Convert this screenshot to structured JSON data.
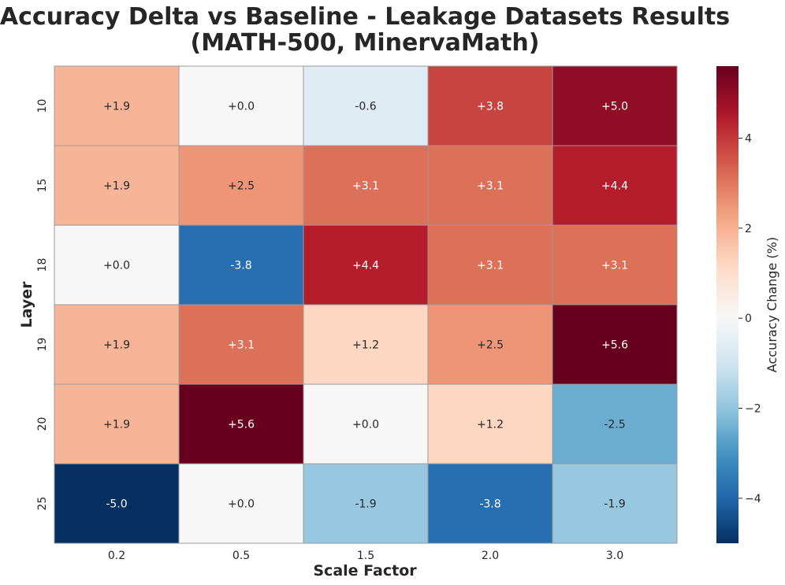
{
  "chart_data": {
    "type": "heatmap",
    "title_line1": "Accuracy Delta vs Baseline - Leakage Datasets Results",
    "title_line2": "(MATH-500, MinervaMath)",
    "xlabel": "Scale Factor",
    "ylabel": "Layer",
    "x_categories": [
      "0.2",
      "0.5",
      "1.5",
      "2.0",
      "3.0"
    ],
    "y_categories": [
      "10",
      "15",
      "18",
      "19",
      "20",
      "25"
    ],
    "values": [
      [
        1.9,
        0.0,
        -0.6,
        3.8,
        5.0
      ],
      [
        1.9,
        2.5,
        3.1,
        3.1,
        4.4
      ],
      [
        0.0,
        -3.8,
        4.4,
        3.1,
        3.1
      ],
      [
        1.9,
        3.1,
        1.2,
        2.5,
        5.6
      ],
      [
        1.9,
        5.6,
        0.0,
        1.2,
        -2.5
      ],
      [
        -5.0,
        0.0,
        -1.9,
        -3.8,
        -1.9
      ]
    ],
    "cell_labels": [
      [
        "+1.9",
        "+0.0",
        "-0.6",
        "+3.8",
        "+5.0"
      ],
      [
        "+1.9",
        "+2.5",
        "+3.1",
        "+3.1",
        "+4.4"
      ],
      [
        "+0.0",
        "-3.8",
        "+4.4",
        "+3.1",
        "+3.1"
      ],
      [
        "+1.9",
        "+3.1",
        "+1.2",
        "+2.5",
        "+5.6"
      ],
      [
        "+1.9",
        "+5.6",
        "+0.0",
        "+1.2",
        "-2.5"
      ],
      [
        "-5.0",
        "+0.0",
        "-1.9",
        "-3.8",
        "-1.9"
      ]
    ],
    "colorbar": {
      "label": "Accuracy Change (%)",
      "vmin": -5.0,
      "vmax": 5.6,
      "ticks": [
        -4,
        -2,
        0,
        2,
        4
      ],
      "tick_labels": [
        "−4",
        "−2",
        "0",
        "2",
        "4"
      ],
      "colormap": "RdBu_r"
    }
  }
}
